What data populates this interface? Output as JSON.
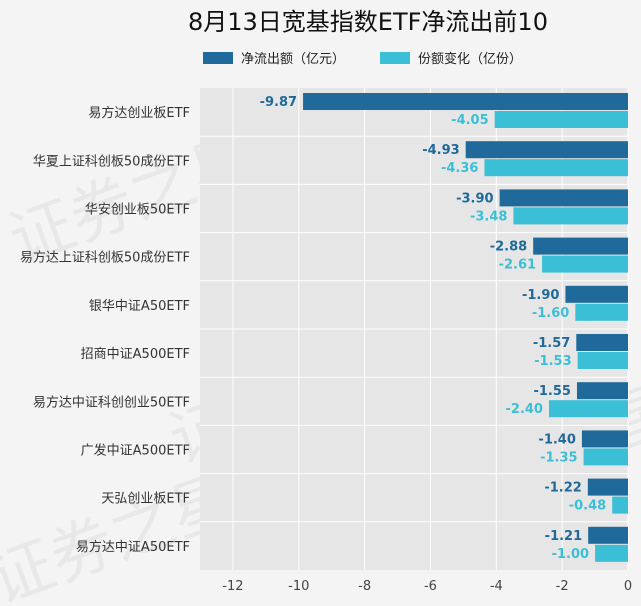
{
  "chart_data": {
    "type": "bar",
    "orientation": "horizontal",
    "title": "8月13日宽基指数ETF净流出前10",
    "categories": [
      "易方达创业板ETF",
      "华夏上证科创板50成份ETF",
      "华安创业板50ETF",
      "易方达上证科创板50成份ETF",
      "银华中证A50ETF",
      "招商中证A500ETF",
      "易方达中证科创创业50ETF",
      "广发中证A500ETF",
      "天弘创业板ETF",
      "易方达中证A50ETF"
    ],
    "series": [
      {
        "name": "净流出额（亿元）",
        "color": "#1f6a9a",
        "values": [
          -9.87,
          -4.93,
          -3.9,
          -2.88,
          -1.9,
          -1.57,
          -1.55,
          -1.4,
          -1.22,
          -1.21
        ],
        "labels": [
          "-9.87",
          "-4.93",
          "-3.90",
          "-2.88",
          "-1.90",
          "-1.57",
          "-1.55",
          "-1.40",
          "-1.22",
          "-1.21"
        ]
      },
      {
        "name": "份额变化（亿份）",
        "color": "#3bbfd6",
        "values": [
          -4.05,
          -4.36,
          -3.48,
          -2.61,
          -1.6,
          -1.53,
          -2.4,
          -1.35,
          -0.48,
          -1.0
        ],
        "labels": [
          "-4.05",
          "-4.36",
          "-3.48",
          "-2.61",
          "-1.60",
          "-1.53",
          "-2.40",
          "-1.35",
          "-0.48",
          "-1.00"
        ]
      }
    ],
    "xlim": [
      -13,
      0
    ],
    "xticks": [
      -12,
      -10,
      -8,
      -6,
      -4,
      -2,
      0
    ],
    "xtick_labels": [
      "-12",
      "-10",
      "-8",
      "-6",
      "-4",
      "-2",
      "0"
    ],
    "grid": true,
    "legend": "top",
    "watermark": "证券之星"
  }
}
